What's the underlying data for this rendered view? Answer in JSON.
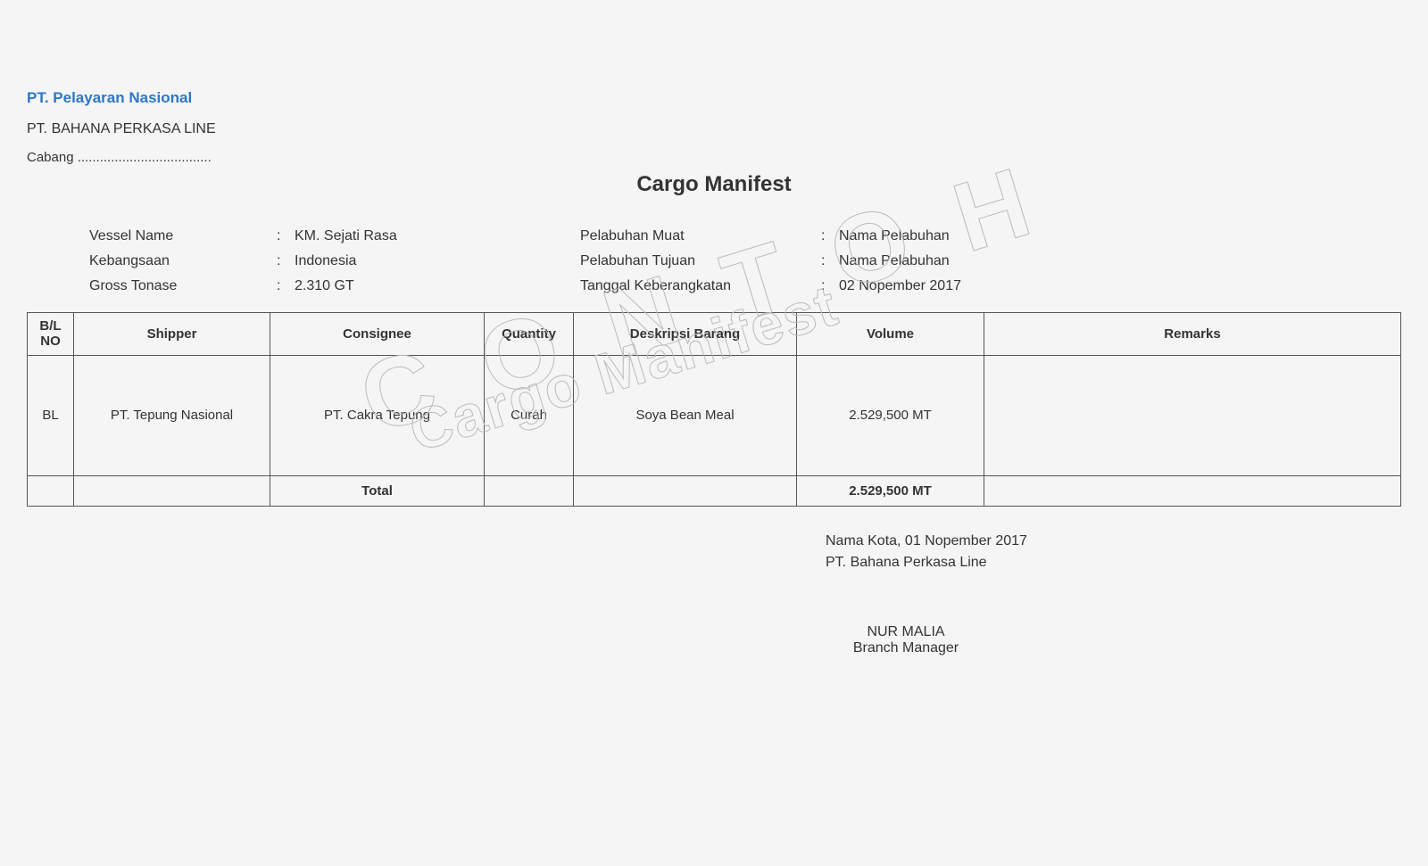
{
  "watermark": {
    "line1": "CONTOH",
    "line2": "Cargo Manifest"
  },
  "header": {
    "company_link": "PT. Pelayaran Nasional",
    "company_sub": "PT. BAHANA PERKASA LINE",
    "cabang": "Cabang ....................................",
    "title": "Cargo Manifest"
  },
  "meta": {
    "left": [
      {
        "label": "Vessel Name",
        "value": "KM. Sejati Rasa"
      },
      {
        "label": "Kebangsaan",
        "value": "Indonesia"
      },
      {
        "label": "Gross Tonase",
        "value": "2.310 GT"
      }
    ],
    "right": [
      {
        "label": "Pelabuhan Muat",
        "value": "Nama Pelabuhan"
      },
      {
        "label": "Pelabuhan Tujuan",
        "value": "Nama Pelabuhan"
      },
      {
        "label": "Tanggal Keberangkatan",
        "value": "02 Nopember 2017"
      }
    ]
  },
  "table": {
    "columns": [
      "B/L\nNO",
      "Shipper",
      "Consignee",
      "Quantity",
      "Deskripsi Barang",
      "Volume",
      "Remarks"
    ],
    "rows": [
      [
        "BL",
        "PT. Tepung Nasional",
        "PT. Cakra Tepung",
        "Curah",
        "Soya Bean Meal",
        "2.529,500 MT",
        ""
      ]
    ],
    "footer": {
      "label": "Total",
      "volume": "2.529,500 MT"
    }
  },
  "signature": {
    "place_date": "Nama Kota, 01 Nopember 2017",
    "company": "PT. Bahana Perkasa Line",
    "name": "NUR MALIA",
    "title": "Branch Manager"
  }
}
